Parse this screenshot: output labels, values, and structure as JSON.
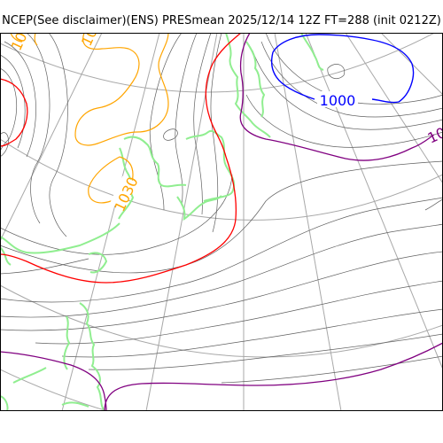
{
  "title": "NCEP(See disclaimer)(ENS) PRESmean 2025/12/14 12Z FT=288 (init 0212Z)",
  "colors": {
    "background": "#ffffff",
    "graticule": "#a8a8a8",
    "isobar": "#606060",
    "contour_1000": "#0000ff",
    "contour_1010": "#800080",
    "contour_1020": "#ff0000",
    "contour_1030": "#ffa500",
    "coastline": "#90ee90",
    "frame": "#000000"
  },
  "contour_labels": {
    "c1000": "1000",
    "c1010_partial": "10",
    "c1030_mid": "1030",
    "c1030_topleft": "10",
    "c1030_top": "10"
  }
}
